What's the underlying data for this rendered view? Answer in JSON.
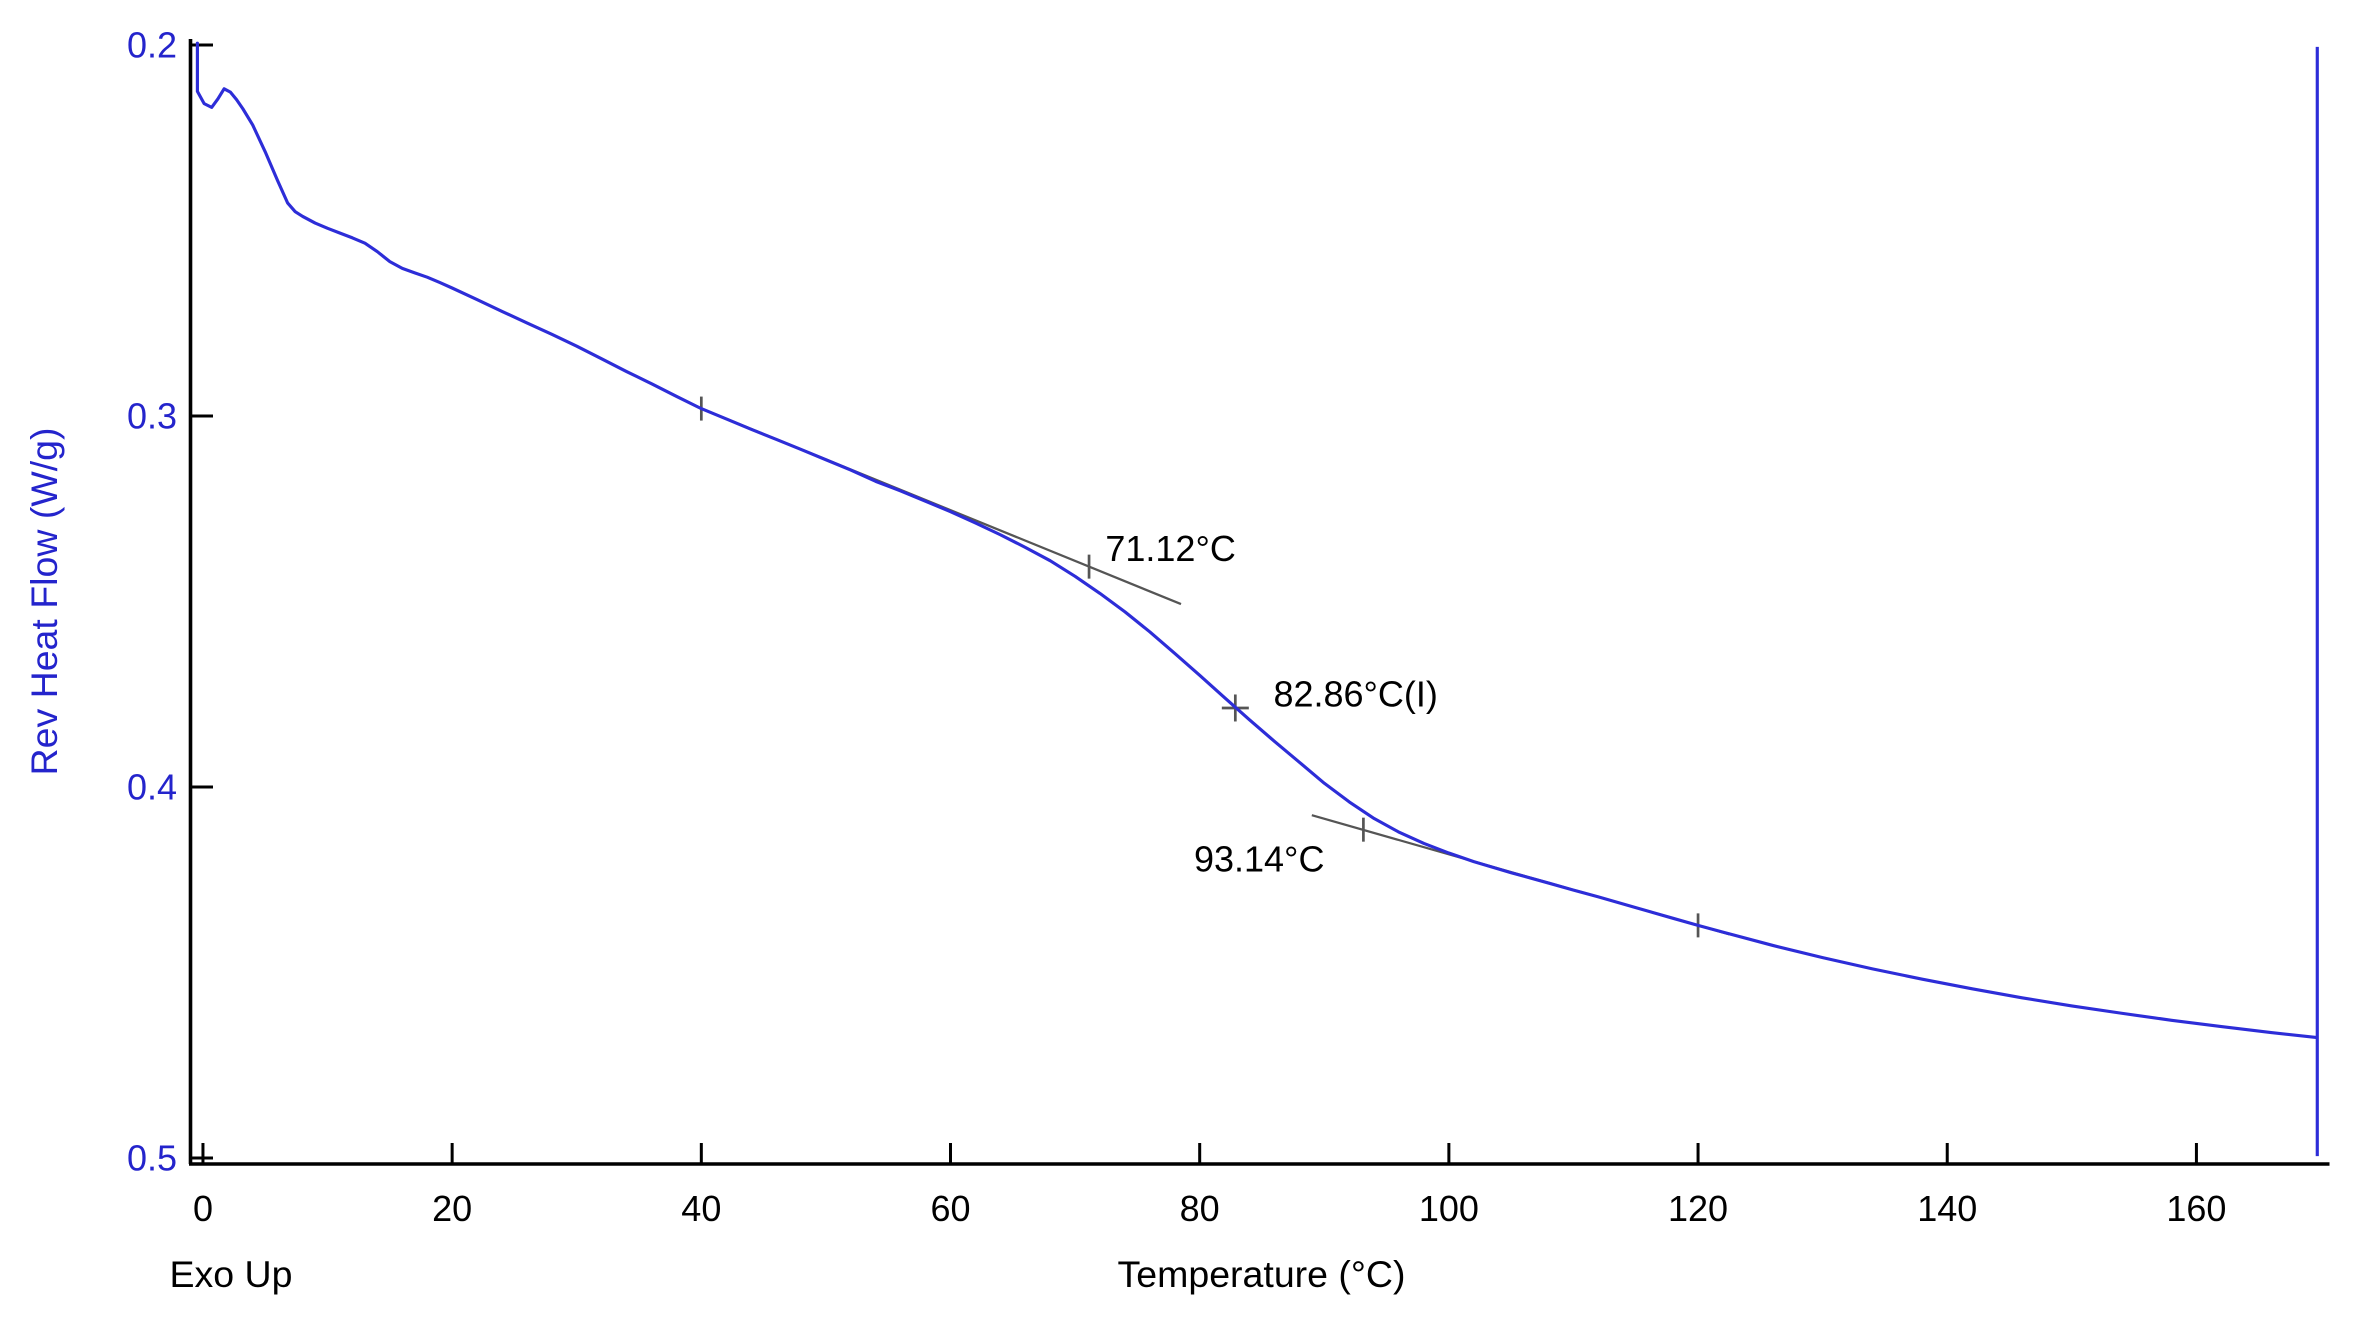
{
  "figure": {
    "background": "#ffffff"
  },
  "chart_data": {
    "type": "line",
    "title": "",
    "xlabel": "Temperature (°C)",
    "ylabel": "Rev Heat Flow (W/g)",
    "exo_direction_label": "Exo Up",
    "xlim": [
      -1,
      170.2
    ],
    "ylim": [
      0.2,
      0.5
    ],
    "y_axis_inverted_display": "0.2 at top, 0.5 at bottom",
    "x_ticks": [
      0,
      20,
      40,
      60,
      80,
      100,
      120,
      140,
      160
    ],
    "y_ticks": [
      "0.2",
      "0.3",
      "0.4",
      "0.5"
    ],
    "grid": false,
    "colors": {
      "curve": "#2d2dd8",
      "axis_text_y": "#2424cc",
      "axis_text_x": "#000000",
      "axis_line": "#000000",
      "tangent": "#555555",
      "annotation_text": "#000000"
    },
    "series": [
      {
        "name": "rev-heat-flow",
        "points": [
          [
            -0.45,
            0.1995
          ],
          [
            -0.45,
            0.2125
          ],
          [
            0.1,
            0.2158
          ],
          [
            0.7,
            0.2168
          ],
          [
            1.2,
            0.2145
          ],
          [
            1.7,
            0.2118
          ],
          [
            2.2,
            0.2127
          ],
          [
            2.7,
            0.2147
          ],
          [
            3.2,
            0.2172
          ],
          [
            4,
            0.2216
          ],
          [
            5,
            0.2288
          ],
          [
            6,
            0.2366
          ],
          [
            6.8,
            0.2426
          ],
          [
            7.4,
            0.2449
          ],
          [
            8,
            0.2462
          ],
          [
            9,
            0.248
          ],
          [
            10,
            0.2494
          ],
          [
            11,
            0.2507
          ],
          [
            12,
            0.252
          ],
          [
            13,
            0.2534
          ],
          [
            14,
            0.2557
          ],
          [
            15,
            0.2584
          ],
          [
            16,
            0.2602
          ],
          [
            17,
            0.2614
          ],
          [
            18,
            0.2626
          ],
          [
            19,
            0.264
          ],
          [
            20,
            0.2655
          ],
          [
            22,
            0.2686
          ],
          [
            24,
            0.2718
          ],
          [
            26,
            0.2749
          ],
          [
            28,
            0.278
          ],
          [
            30,
            0.2812
          ],
          [
            32,
            0.2846
          ],
          [
            34,
            0.288
          ],
          [
            36,
            0.2913
          ],
          [
            38,
            0.2947
          ],
          [
            40,
            0.298
          ],
          [
            42,
            0.3008
          ],
          [
            44,
            0.3036
          ],
          [
            46,
            0.3063
          ],
          [
            48,
            0.309
          ],
          [
            50,
            0.3118
          ],
          [
            52,
            0.3146
          ],
          [
            54,
            0.3176
          ],
          [
            56,
            0.3202
          ],
          [
            58,
            0.323
          ],
          [
            60,
            0.3258
          ],
          [
            62,
            0.3288
          ],
          [
            64,
            0.332
          ],
          [
            66,
            0.3354
          ],
          [
            68,
            0.339
          ],
          [
            70,
            0.3432
          ],
          [
            72,
            0.3478
          ],
          [
            74,
            0.3528
          ],
          [
            76,
            0.3582
          ],
          [
            78,
            0.364
          ],
          [
            80,
            0.3699
          ],
          [
            82,
            0.3759
          ],
          [
            84,
            0.3819
          ],
          [
            86,
            0.3877
          ],
          [
            88,
            0.3933
          ],
          [
            90,
            0.399
          ],
          [
            92,
            0.404
          ],
          [
            94,
            0.4085
          ],
          [
            96,
            0.4122
          ],
          [
            98,
            0.4152
          ],
          [
            100,
            0.4178
          ],
          [
            102,
            0.4201
          ],
          [
            105,
            0.4231
          ],
          [
            108,
            0.4259
          ],
          [
            110,
            0.4278
          ],
          [
            112,
            0.4296
          ],
          [
            115,
            0.4325
          ],
          [
            118,
            0.4354
          ],
          [
            120,
            0.4373
          ],
          [
            122,
            0.4391
          ],
          [
            126,
            0.4427
          ],
          [
            130,
            0.446
          ],
          [
            134,
            0.449
          ],
          [
            138,
            0.4518
          ],
          [
            142,
            0.4544
          ],
          [
            146,
            0.4568
          ],
          [
            150,
            0.459
          ],
          [
            154,
            0.461
          ],
          [
            158,
            0.4629
          ],
          [
            162,
            0.4646
          ],
          [
            166,
            0.4662
          ],
          [
            169.6,
            0.4675
          ]
        ]
      }
    ],
    "end_spike": {
      "t": 169.7,
      "v_top": 0.2005,
      "v_bottom": 0.4995
    },
    "tangents": [
      {
        "name": "pre-transition-tangent",
        "points": [
          [
            40,
            0.298
          ],
          [
            78.5,
            0.3507
          ]
        ]
      },
      {
        "name": "post-transition-tangent",
        "points": [
          [
            89,
            0.4076
          ],
          [
            122.5,
            0.4397
          ]
        ]
      }
    ],
    "markers": [
      {
        "type": "tick",
        "t": 40,
        "v": 0.298
      },
      {
        "type": "tick",
        "t": 71.12,
        "v": 0.3406
      },
      {
        "type": "cross",
        "t": 82.86,
        "v": 0.3787
      },
      {
        "type": "tick",
        "t": 93.14,
        "v": 0.4115
      },
      {
        "type": "tick",
        "t": 120,
        "v": 0.4373
      }
    ],
    "annotations": [
      {
        "text": "71.12°C",
        "t": 72.43,
        "v": 0.3391,
        "meaning": "onset temperature"
      },
      {
        "text": "82.86°C(I)",
        "t": 85.92,
        "v": 0.3783,
        "meaning": "inflection midpoint temperature"
      },
      {
        "text": "93.14°C",
        "t": 79.54,
        "v": 0.4228,
        "meaning": "end temperature"
      }
    ]
  }
}
